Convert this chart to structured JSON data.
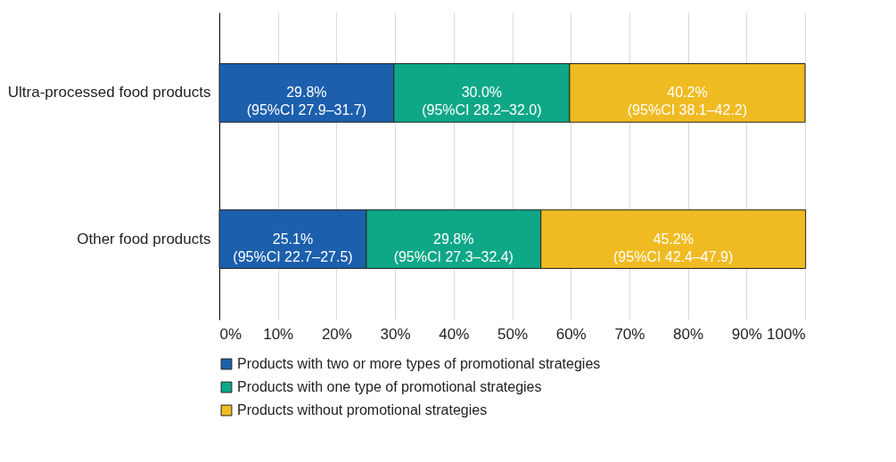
{
  "chart_data": {
    "type": "bar",
    "orientation": "horizontal",
    "stacked": true,
    "categories": [
      "Ultra-processed food products",
      "Other food products"
    ],
    "series": [
      {
        "name": "Products with two or more types of promotional strategies",
        "color": "#1c5fad",
        "values": [
          29.8,
          25.1
        ],
        "value_labels": [
          "29.8%\n(95%CI 27.9–31.7)",
          "25.1%\n(95%CI 22.7–27.5)"
        ]
      },
      {
        "name": "Products with one type of promotional strategies",
        "color": "#0ea888",
        "values": [
          30.0,
          29.8
        ],
        "value_labels": [
          "30.0%\n(95%CI 28.2–32.0)",
          "29.8%\n(95%CI 27.3–32.4)"
        ]
      },
      {
        "name": "Products without promotional strategies",
        "color": "#f0bb22",
        "values": [
          40.2,
          45.2
        ],
        "value_labels": [
          "40.2%\n(95%CI 38.1–42.2)",
          "45.2%\n(95%CI 42.4–47.9)"
        ]
      }
    ],
    "xlim": [
      0,
      100
    ],
    "xticks": [
      {
        "value": 0,
        "label": "0%"
      },
      {
        "value": 10,
        "label": "10%"
      },
      {
        "value": 20,
        "label": "20%"
      },
      {
        "value": 30,
        "label": "30%"
      },
      {
        "value": 40,
        "label": "40%"
      },
      {
        "value": 50,
        "label": "50%"
      },
      {
        "value": 60,
        "label": "60%"
      },
      {
        "value": 70,
        "label": "70%"
      },
      {
        "value": 80,
        "label": "80%"
      },
      {
        "value": 90,
        "label": "90%"
      },
      {
        "value": 100,
        "label": "100%"
      }
    ],
    "grid": "x",
    "legend": "bottom"
  }
}
